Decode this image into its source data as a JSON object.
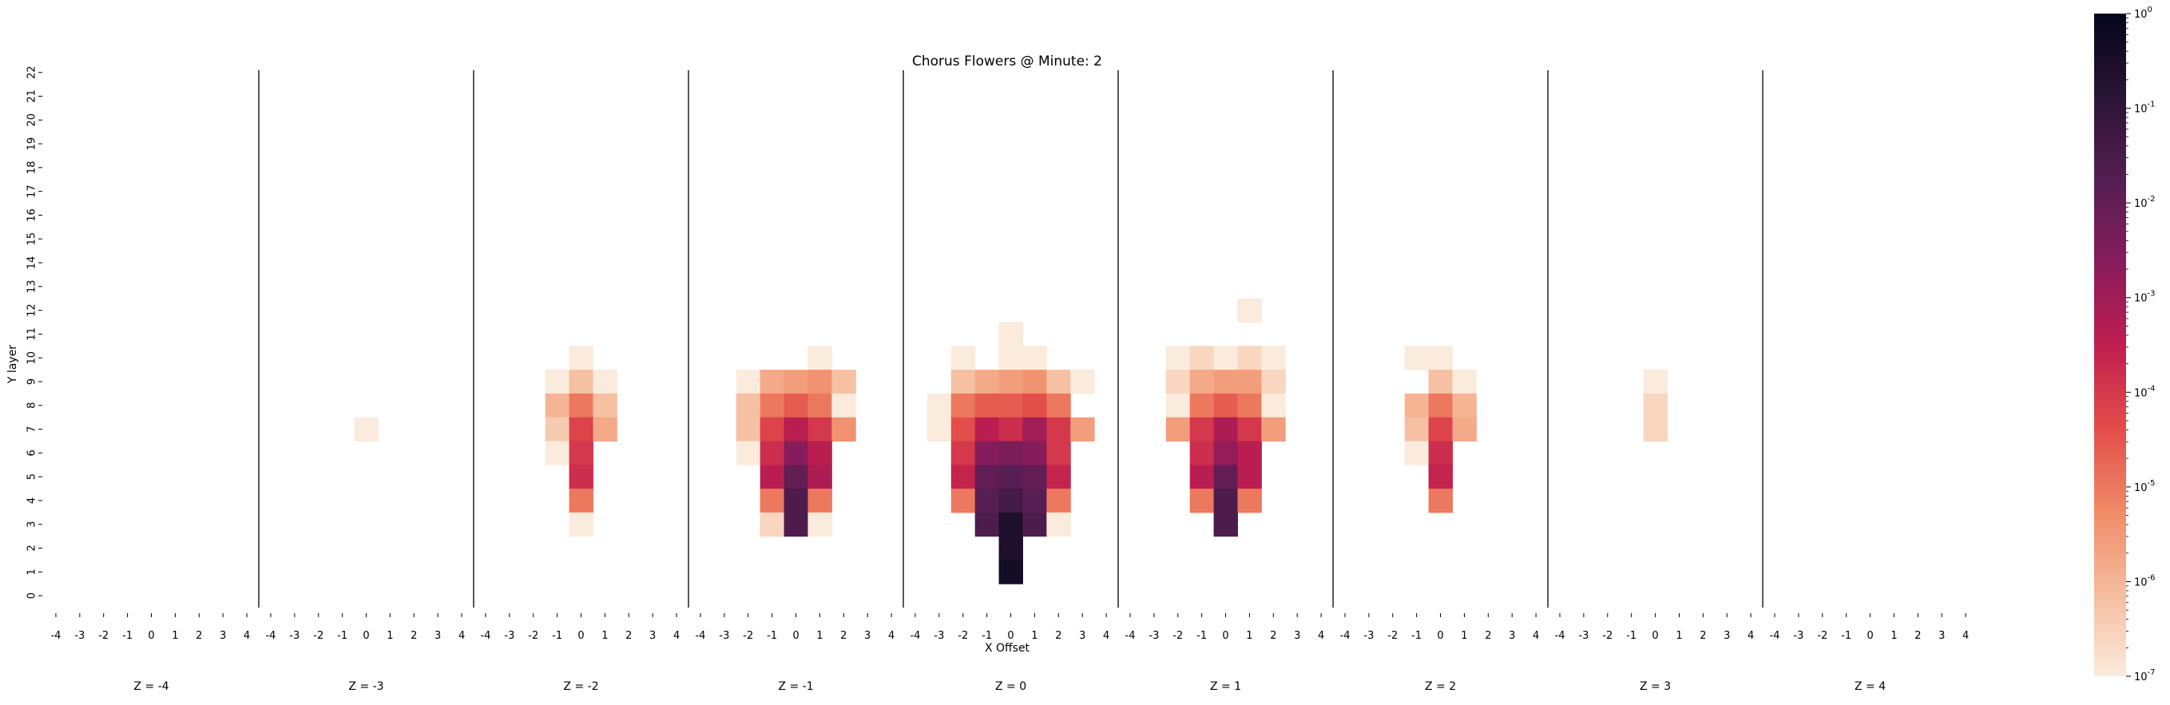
{
  "chart_data": {
    "type": "heatmap",
    "title": "Chorus Flowers @ Minute: 2",
    "xlabel": "X Offset",
    "ylabel": "Y layer",
    "x_ticks": [
      "-4",
      "-3",
      "-2",
      "-1",
      "0",
      "1",
      "2",
      "3",
      "4"
    ],
    "y_ticks": [
      "0",
      "1",
      "2",
      "3",
      "4",
      "5",
      "6",
      "7",
      "8",
      "9",
      "10",
      "11",
      "12",
      "13",
      "14",
      "15",
      "16",
      "17",
      "18",
      "19",
      "20",
      "21",
      "22"
    ],
    "panel_labels": [
      "Z = -4",
      "Z = -3",
      "Z = -2",
      "Z = -1",
      "Z = 0",
      "Z = 1",
      "Z = 2",
      "Z = 3",
      "Z = 4"
    ],
    "colorbar": {
      "scale": "log",
      "min": 1e-07,
      "max": 1,
      "tick_labels": [
        "10^-7",
        "10^-6",
        "10^-5",
        "10^-4",
        "10^-3",
        "10^-2",
        "10^-1",
        "10^0"
      ]
    },
    "value_note": "cells give log10(probability)",
    "panels": [
      {
        "z": -4,
        "cells": []
      },
      {
        "z": -3,
        "cells": [
          [
            0,
            7,
            -7
          ]
        ]
      },
      {
        "z": -2,
        "cells": [
          [
            0,
            10,
            -7
          ],
          [
            -1,
            9,
            -7
          ],
          [
            0,
            9,
            -6.2
          ],
          [
            1,
            9,
            -7
          ],
          [
            -1,
            8,
            -6
          ],
          [
            0,
            8,
            -5
          ],
          [
            1,
            8,
            -6.2
          ],
          [
            -1,
            7,
            -6.4
          ],
          [
            0,
            7,
            -4.2
          ],
          [
            1,
            7,
            -5.8
          ],
          [
            -1,
            6,
            -7
          ],
          [
            0,
            6,
            -4
          ],
          [
            0,
            5,
            -3.8
          ],
          [
            0,
            4,
            -5
          ],
          [
            0,
            3,
            -7
          ]
        ]
      },
      {
        "z": -1,
        "cells": [
          [
            1,
            10,
            -7
          ],
          [
            -2,
            9,
            -7
          ],
          [
            -1,
            9,
            -5.8
          ],
          [
            0,
            9,
            -5.6
          ],
          [
            1,
            9,
            -5.4
          ],
          [
            2,
            9,
            -6.2
          ],
          [
            -2,
            8,
            -6.2
          ],
          [
            -1,
            8,
            -5
          ],
          [
            0,
            8,
            -4.6
          ],
          [
            1,
            8,
            -5
          ],
          [
            2,
            8,
            -7
          ],
          [
            -2,
            7,
            -6.2
          ],
          [
            -1,
            7,
            -4.2
          ],
          [
            0,
            7,
            -3.4
          ],
          [
            1,
            7,
            -4
          ],
          [
            2,
            7,
            -5.4
          ],
          [
            -2,
            6,
            -7
          ],
          [
            -1,
            6,
            -3.8
          ],
          [
            0,
            6,
            -2.6
          ],
          [
            1,
            6,
            -3.4
          ],
          [
            -1,
            5,
            -3.4
          ],
          [
            0,
            5,
            -2
          ],
          [
            1,
            5,
            -3.2
          ],
          [
            -1,
            4,
            -5
          ],
          [
            0,
            4,
            -1.6
          ],
          [
            1,
            4,
            -5
          ],
          [
            -1,
            3,
            -6.6
          ],
          [
            0,
            3,
            -1.6
          ],
          [
            1,
            3,
            -7
          ]
        ]
      },
      {
        "z": 0,
        "cells": [
          [
            0,
            11,
            -7
          ],
          [
            -2,
            10,
            -7
          ],
          [
            0,
            10,
            -7
          ],
          [
            1,
            10,
            -7
          ],
          [
            -2,
            9,
            -6.2
          ],
          [
            -1,
            9,
            -5.8
          ],
          [
            0,
            9,
            -5.6
          ],
          [
            1,
            9,
            -5.4
          ],
          [
            2,
            9,
            -6.2
          ],
          [
            3,
            9,
            -7
          ],
          [
            -3,
            8,
            -7
          ],
          [
            -2,
            8,
            -5
          ],
          [
            -1,
            8,
            -4.6
          ],
          [
            0,
            8,
            -4.6
          ],
          [
            1,
            8,
            -4.4
          ],
          [
            2,
            8,
            -5
          ],
          [
            -3,
            7,
            -7
          ],
          [
            -2,
            7,
            -4.4
          ],
          [
            -1,
            7,
            -3.4
          ],
          [
            0,
            7,
            -3.8
          ],
          [
            1,
            7,
            -3
          ],
          [
            2,
            7,
            -4
          ],
          [
            3,
            7,
            -5.6
          ],
          [
            -2,
            6,
            -4
          ],
          [
            -1,
            6,
            -2.6
          ],
          [
            0,
            6,
            -2.4
          ],
          [
            1,
            6,
            -2.6
          ],
          [
            2,
            6,
            -4
          ],
          [
            -2,
            5,
            -3.6
          ],
          [
            -1,
            5,
            -2
          ],
          [
            0,
            5,
            -1.8
          ],
          [
            1,
            5,
            -2
          ],
          [
            2,
            5,
            -3.6
          ],
          [
            -2,
            4,
            -5
          ],
          [
            -1,
            4,
            -1.8
          ],
          [
            0,
            4,
            -1.4
          ],
          [
            1,
            4,
            -1.8
          ],
          [
            2,
            4,
            -5
          ],
          [
            -1,
            3,
            -1.6
          ],
          [
            0,
            3,
            -0.6
          ],
          [
            1,
            3,
            -1.6
          ],
          [
            2,
            3,
            -7
          ],
          [
            0,
            2,
            -0.6
          ],
          [
            0,
            1,
            -0.4
          ]
        ]
      },
      {
        "z": 1,
        "cells": [
          [
            1,
            12,
            -7
          ],
          [
            -2,
            10,
            -7
          ],
          [
            -1,
            10,
            -6.6
          ],
          [
            0,
            10,
            -7
          ],
          [
            1,
            10,
            -6.6
          ],
          [
            2,
            10,
            -7
          ],
          [
            -2,
            9,
            -6.6
          ],
          [
            -1,
            9,
            -5.8
          ],
          [
            0,
            9,
            -5.6
          ],
          [
            1,
            9,
            -5.6
          ],
          [
            2,
            9,
            -6.6
          ],
          [
            -2,
            8,
            -7
          ],
          [
            -1,
            8,
            -5
          ],
          [
            0,
            8,
            -4.6
          ],
          [
            1,
            8,
            -5
          ],
          [
            2,
            8,
            -7
          ],
          [
            -2,
            7,
            -5.6
          ],
          [
            -1,
            7,
            -4
          ],
          [
            0,
            7,
            -3.2
          ],
          [
            1,
            7,
            -4
          ],
          [
            2,
            7,
            -5.6
          ],
          [
            -1,
            6,
            -3.8
          ],
          [
            0,
            6,
            -2.8
          ],
          [
            1,
            6,
            -3.4
          ],
          [
            -1,
            5,
            -3.4
          ],
          [
            0,
            5,
            -2
          ],
          [
            1,
            5,
            -3.4
          ],
          [
            -1,
            4,
            -5
          ],
          [
            0,
            4,
            -1.6
          ],
          [
            1,
            4,
            -5
          ],
          [
            0,
            3,
            -1.6
          ]
        ]
      },
      {
        "z": 2,
        "cells": [
          [
            -1,
            10,
            -7
          ],
          [
            0,
            10,
            -7
          ],
          [
            0,
            9,
            -6.2
          ],
          [
            1,
            9,
            -7
          ],
          [
            -1,
            8,
            -6
          ],
          [
            0,
            8,
            -5
          ],
          [
            1,
            8,
            -6
          ],
          [
            -1,
            7,
            -6.2
          ],
          [
            0,
            7,
            -4.2
          ],
          [
            1,
            7,
            -5.8
          ],
          [
            -1,
            6,
            -7
          ],
          [
            0,
            6,
            -3.8
          ],
          [
            0,
            5,
            -3.6
          ],
          [
            0,
            4,
            -5
          ]
        ]
      },
      {
        "z": 3,
        "cells": [
          [
            0,
            9,
            -7
          ],
          [
            0,
            8,
            -6.6
          ],
          [
            0,
            7,
            -6.6
          ]
        ]
      },
      {
        "z": 4,
        "cells": []
      }
    ]
  }
}
